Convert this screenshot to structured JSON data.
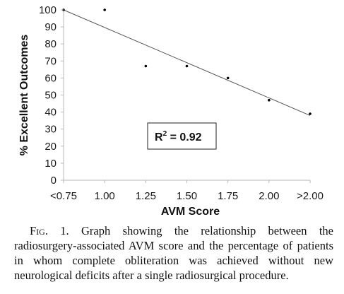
{
  "chart_data": {
    "type": "scatter",
    "categories": [
      "<0.75",
      "1.00",
      "1.25",
      "1.50",
      "1.75",
      "2.00",
      ">2.00"
    ],
    "values": [
      100,
      100,
      67,
      67,
      60,
      47,
      39
    ],
    "trendline": {
      "start": 100,
      "end": 38
    },
    "ylabel": "% Excellent Outcomes",
    "xlabel": "AVM Score",
    "ylim": [
      0,
      100
    ],
    "yticks": [
      "0",
      "10",
      "20",
      "30",
      "40",
      "50",
      "60",
      "70",
      "80",
      "90",
      "100"
    ],
    "annotation": {
      "base": "R",
      "sup": "2",
      "rest": " = 0.92"
    },
    "grid": false,
    "colors": {
      "plot_background": "#ffffff",
      "line": "#555555",
      "points": "#000000",
      "axes": "#b8b8b8"
    }
  },
  "caption": {
    "fig_label": "Fig. 1.",
    "text": " Graph showing the relationship between the radiosurgery-associated AVM score and the percentage of patients in whom complete obliteration was achieved without new neurological deficits after a single radiosurgical procedure."
  }
}
